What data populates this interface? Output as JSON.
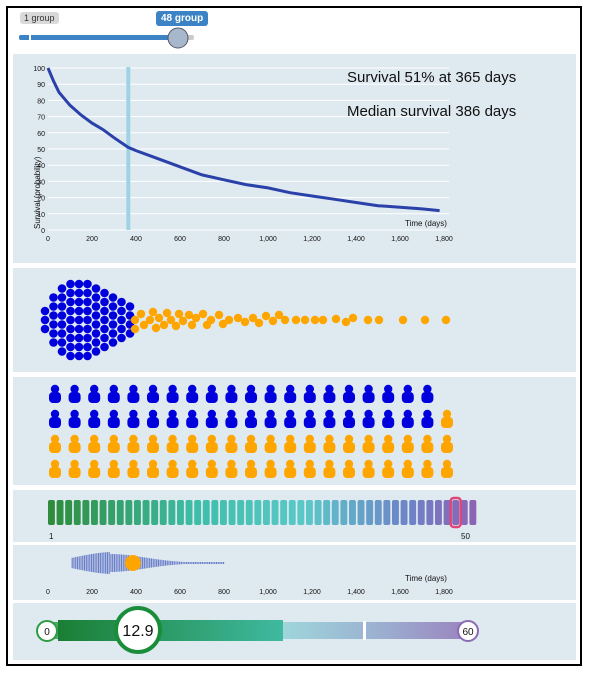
{
  "group_slider": {
    "min_label": "1 group",
    "current_label": "48 group",
    "value": 48,
    "min": 1,
    "max": 50
  },
  "survival_plot": {
    "annotation_line1": "Survival 51% at 365 days",
    "annotation_line2": "Median survival 386 days",
    "ylabel": "Survival (probability)",
    "xlabel": "Time (days)",
    "marker_day": 365
  },
  "chart_data": {
    "type": "line",
    "title": "",
    "xlabel": "Time (days)",
    "ylabel": "Survival (probability)",
    "xlim": [
      0,
      1800
    ],
    "ylim": [
      0,
      100
    ],
    "x_ticks": [
      "0",
      "200",
      "400",
      "600",
      "800",
      "1,000",
      "1,200",
      "1,400",
      "1,600",
      "1,800"
    ],
    "y_ticks": [
      "0",
      "10",
      "20",
      "30",
      "40",
      "50",
      "60",
      "70",
      "80",
      "90",
      "100"
    ],
    "series": [
      {
        "x": [
          0,
          25,
          50,
          100,
          150,
          200,
          250,
          300,
          365,
          400,
          500,
          600,
          700,
          800,
          900,
          1000,
          1100,
          1200,
          1300,
          1400,
          1500,
          1600,
          1700,
          1780
        ],
        "y": [
          100,
          92,
          85,
          77,
          71,
          66,
          62,
          57,
          51,
          49,
          44,
          39,
          34,
          31,
          28,
          26,
          23,
          21,
          19,
          17,
          15,
          14,
          13,
          12
        ]
      }
    ],
    "grid": true
  },
  "icon_grid": {
    "total": 50,
    "rows": 4,
    "cols": 20,
    "survived": 24
  },
  "color_strip": {
    "start_label": "1",
    "end_label": "50",
    "selected_index": 48
  },
  "timeline": {
    "xlabel": "Time (days)",
    "x_ticks": [
      "0",
      "200",
      "400",
      "600",
      "800",
      "1,000",
      "1,200",
      "1,400",
      "1,600",
      "1,800"
    ],
    "highlight_day": 386
  },
  "value_slider": {
    "min_label": "0",
    "max_label": "60",
    "value_label": "12.9",
    "value": 12.9
  },
  "colors": {
    "survived": "#0000dd",
    "died": "#ffa500",
    "line": "#2941a8",
    "marker": "#9fd3e3",
    "panel": "#dfe9f0"
  }
}
